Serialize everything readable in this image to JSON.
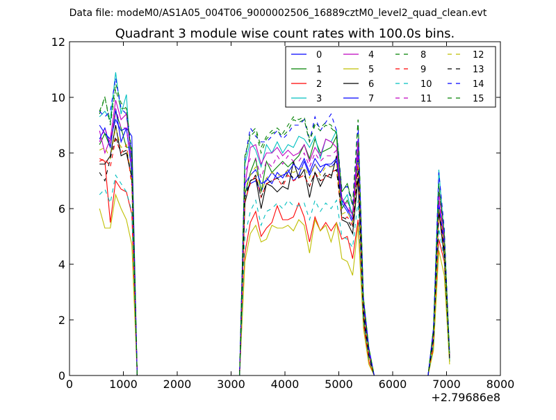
{
  "figure": {
    "suptitle": "Data file: modeM0/AS1A05_004T06_9000002506_16889cztM0_level2_quad_clean.evt",
    "title": "Quadrant 3 module wise count rates with 100.0s bins.",
    "x_offset_label": "+2.79686e8"
  },
  "chart_data": {
    "type": "line",
    "title": "Quadrant 3 module wise count rates with 100.0s bins.",
    "xlabel": "",
    "ylabel": "",
    "xlim": [
      0,
      8000
    ],
    "ylim": [
      0,
      12
    ],
    "x_ticks": [
      0,
      1000,
      2000,
      3000,
      4000,
      5000,
      6000,
      7000,
      8000
    ],
    "y_ticks": [
      0,
      2,
      4,
      6,
      8,
      10,
      12
    ],
    "x_offset": "+2.79686e8",
    "grid": false,
    "legend_position": "top-right",
    "x": [
      557,
      657,
      757,
      857,
      957,
      1057,
      1157,
      1257,
      3157,
      3257,
      3357,
      3457,
      3557,
      3657,
      3757,
      3857,
      3957,
      4057,
      4157,
      4257,
      4357,
      4457,
      4557,
      4657,
      4757,
      4857,
      4957,
      5057,
      5157,
      5257,
      5357,
      5457,
      5557,
      5657,
      6657,
      6757,
      6857,
      6957,
      7057
    ],
    "series": [
      {
        "name": "0",
        "color": "#0000ff",
        "dash": false,
        "values": [
          9.0,
          8.7,
          8.5,
          9.2,
          8.8,
          8.9,
          8.6,
          0,
          0,
          6.6,
          6.9,
          7.0,
          6.6,
          7.1,
          6.9,
          7.3,
          7.1,
          7.4,
          7.0,
          7.2,
          7.7,
          7.2,
          7.6,
          7.3,
          7.6,
          7.5,
          7.7,
          6.2,
          5.9,
          5.5,
          8.0,
          2.4,
          0.8,
          0,
          0,
          1.5,
          6.2,
          4.6,
          0.7
        ]
      },
      {
        "name": "1",
        "color": "#008000",
        "dash": false,
        "values": [
          8.3,
          8.7,
          8.2,
          9.5,
          8.9,
          8.2,
          8.2,
          0,
          0,
          6.5,
          7.3,
          7.8,
          6.6,
          7.7,
          7.3,
          7.5,
          7.7,
          7.5,
          7.7,
          7.9,
          8.3,
          7.8,
          8.5,
          8.0,
          8.1,
          8.2,
          8.6,
          6.0,
          6.3,
          5.8,
          8.3,
          2.3,
          0.7,
          0,
          0,
          1.3,
          5.9,
          4.9,
          0.5
        ]
      },
      {
        "name": "2",
        "color": "#ff0000",
        "dash": false,
        "values": [
          7.8,
          7.7,
          5.5,
          7.0,
          6.7,
          6.6,
          5.8,
          0,
          0,
          4.4,
          5.5,
          5.9,
          5.0,
          5.3,
          5.5,
          6.1,
          5.6,
          5.6,
          5.7,
          6.2,
          5.7,
          4.8,
          5.7,
          5.2,
          5.5,
          5.2,
          5.5,
          4.9,
          5.0,
          4.2,
          5.6,
          1.9,
          0.5,
          0,
          0,
          1.0,
          4.9,
          4.1,
          0.6
        ]
      },
      {
        "name": "3",
        "color": "#00bfbf",
        "dash": false,
        "values": [
          9.3,
          9.5,
          9.2,
          10.9,
          9.4,
          10.1,
          7.0,
          0,
          0,
          7.6,
          8.4,
          8.1,
          7.5,
          8.3,
          8.0,
          8.4,
          8.0,
          8.3,
          8.2,
          8.6,
          8.5,
          8.2,
          8.6,
          7.8,
          8.5,
          8.4,
          8.8,
          6.2,
          6.5,
          5.7,
          8.5,
          2.7,
          0.9,
          0,
          0,
          1.6,
          7.4,
          5.0,
          0.6
        ]
      },
      {
        "name": "4",
        "color": "#bf00bf",
        "dash": false,
        "values": [
          8.8,
          8.0,
          8.5,
          9.9,
          9.2,
          9.4,
          7.6,
          0,
          0,
          6.8,
          8.2,
          8.3,
          7.6,
          8.0,
          8.0,
          8.2,
          7.9,
          8.1,
          7.9,
          8.0,
          8.3,
          7.7,
          8.2,
          7.9,
          8.5,
          8.4,
          8.2,
          6.4,
          6.0,
          5.8,
          8.5,
          2.6,
          0.8,
          0,
          0,
          1.5,
          6.6,
          4.9,
          0.7
        ]
      },
      {
        "name": "5",
        "color": "#bfbf00",
        "dash": false,
        "values": [
          6.0,
          5.3,
          5.3,
          6.5,
          6.0,
          5.6,
          4.7,
          0,
          0,
          4.1,
          5.1,
          5.4,
          4.8,
          4.9,
          5.4,
          5.3,
          5.3,
          5.4,
          5.2,
          5.6,
          5.4,
          4.4,
          5.6,
          5.2,
          5.4,
          4.8,
          5.5,
          4.2,
          4.1,
          3.6,
          5.4,
          1.7,
          0.4,
          0,
          0,
          0.9,
          4.5,
          3.6,
          0.4
        ]
      },
      {
        "name": "6",
        "color": "#000000",
        "dash": false,
        "values": [
          7.6,
          7.6,
          7.9,
          9.0,
          7.9,
          8.0,
          7.1,
          0,
          0,
          6.2,
          7.0,
          7.1,
          6.0,
          6.9,
          6.8,
          6.6,
          6.8,
          6.7,
          7.7,
          7.1,
          7.4,
          6.4,
          7.3,
          6.8,
          7.2,
          7.1,
          7.9,
          5.6,
          5.5,
          5.1,
          7.1,
          2.1,
          0.7,
          0,
          0,
          1.3,
          5.9,
          4.3,
          0.6
        ]
      },
      {
        "name": "7",
        "color": "#0000ff",
        "dash": false,
        "values": [
          8.5,
          8.9,
          8.2,
          9.6,
          8.4,
          8.9,
          7.3,
          0,
          0,
          6.9,
          7.2,
          7.4,
          6.9,
          7.0,
          7.3,
          7.1,
          7.2,
          7.3,
          7.6,
          7.4,
          7.8,
          7.3,
          7.8,
          7.5,
          7.6,
          7.6,
          7.8,
          6.3,
          6.0,
          5.6,
          7.9,
          2.5,
          0.8,
          0,
          0,
          1.4,
          6.2,
          4.7,
          0.7
        ]
      },
      {
        "name": "8",
        "color": "#008000",
        "dash": true,
        "values": [
          9.4,
          10.0,
          9.1,
          10.5,
          9.8,
          9.6,
          8.0,
          0,
          0,
          7.8,
          8.7,
          8.9,
          8.2,
          8.6,
          8.8,
          8.9,
          8.7,
          9.0,
          9.3,
          9.2,
          9.3,
          8.5,
          9.1,
          8.9,
          9.1,
          9.0,
          8.7,
          6.6,
          6.9,
          6.2,
          9.2,
          2.8,
          1.0,
          0,
          0,
          1.7,
          6.9,
          5.2,
          0.8
        ]
      },
      {
        "name": "9",
        "color": "#ff0000",
        "dash": true,
        "values": [
          7.7,
          7.8,
          7.5,
          8.5,
          8.0,
          8.3,
          6.8,
          0,
          0,
          6.3,
          6.9,
          7.2,
          6.4,
          6.9,
          7.0,
          7.1,
          6.8,
          7.2,
          7.0,
          7.1,
          7.2,
          6.8,
          7.3,
          7.0,
          7.1,
          7.3,
          7.4,
          5.6,
          5.7,
          5.4,
          7.6,
          2.3,
          0.7,
          0,
          0,
          1.2,
          5.8,
          4.5,
          0.6
        ]
      },
      {
        "name": "10",
        "color": "#00bfbf",
        "dash": true,
        "values": [
          6.5,
          6.7,
          6.2,
          7.2,
          6.9,
          6.6,
          5.9,
          0,
          0,
          5.0,
          5.9,
          6.3,
          5.4,
          5.9,
          6.0,
          6.2,
          6.0,
          6.3,
          6.1,
          6.1,
          6.2,
          5.6,
          6.3,
          5.9,
          6.2,
          6.0,
          6.3,
          5.0,
          4.9,
          4.6,
          6.3,
          2.0,
          0.6,
          0,
          0,
          1.1,
          5.3,
          4.2,
          0.6
        ]
      },
      {
        "name": "11",
        "color": "#bf00bf",
        "dash": true,
        "values": [
          8.4,
          8.9,
          8.3,
          9.6,
          8.9,
          8.9,
          7.4,
          0,
          0,
          7.3,
          7.8,
          7.8,
          7.1,
          7.7,
          7.5,
          7.9,
          7.6,
          7.9,
          7.7,
          7.7,
          8.0,
          7.5,
          8.0,
          7.7,
          7.9,
          7.9,
          8.1,
          6.2,
          6.2,
          5.7,
          8.1,
          2.5,
          0.8,
          0,
          0,
          1.4,
          6.3,
          4.7,
          0.7
        ]
      },
      {
        "name": "12",
        "color": "#bfbf00",
        "dash": true,
        "values": [
          8.1,
          8.2,
          7.8,
          8.9,
          8.2,
          8.3,
          7.0,
          0,
          0,
          6.7,
          7.2,
          7.5,
          6.6,
          7.1,
          7.3,
          7.2,
          7.2,
          7.4,
          7.3,
          7.4,
          7.5,
          7.1,
          7.6,
          7.2,
          7.5,
          7.5,
          7.6,
          5.8,
          5.9,
          5.5,
          7.7,
          2.4,
          0.7,
          0,
          0,
          1.3,
          6.0,
          4.6,
          0.6
        ]
      },
      {
        "name": "13",
        "color": "#000000",
        "dash": true,
        "values": [
          7.3,
          7.0,
          7.8,
          8.6,
          8.0,
          8.1,
          7.1,
          0,
          0,
          6.4,
          7.0,
          7.2,
          6.4,
          6.9,
          7.0,
          7.1,
          6.9,
          7.3,
          7.1,
          7.2,
          7.2,
          6.8,
          7.3,
          7.0,
          7.3,
          7.2,
          7.4,
          5.7,
          5.6,
          5.3,
          7.4,
          2.3,
          0.7,
          0,
          0,
          1.3,
          5.9,
          4.5,
          0.6
        ]
      },
      {
        "name": "14",
        "color": "#0000ff",
        "dash": true,
        "values": [
          9.5,
          9.3,
          9.5,
          10.7,
          9.6,
          9.4,
          7.9,
          0,
          0,
          7.8,
          8.9,
          8.6,
          8.4,
          8.4,
          8.6,
          8.8,
          8.5,
          8.7,
          9.0,
          9.0,
          9.2,
          8.4,
          9.3,
          8.8,
          9.1,
          9.4,
          8.8,
          6.7,
          6.8,
          6.1,
          9.0,
          2.8,
          1.0,
          0,
          0,
          1.7,
          7.3,
          5.3,
          0.8
        ]
      },
      {
        "name": "15",
        "color": "#008000",
        "dash": true,
        "values": [
          9.5,
          10.0,
          9.0,
          10.3,
          9.6,
          9.6,
          7.8,
          0,
          0,
          7.9,
          8.6,
          8.8,
          8.0,
          8.5,
          8.7,
          8.8,
          8.6,
          8.8,
          9.2,
          9.1,
          9.2,
          8.4,
          9.0,
          8.8,
          9.0,
          8.9,
          8.7,
          6.6,
          6.9,
          6.1,
          9.2,
          2.8,
          1.0,
          0,
          0,
          1.7,
          6.8,
          5.1,
          0.8
        ]
      }
    ]
  }
}
